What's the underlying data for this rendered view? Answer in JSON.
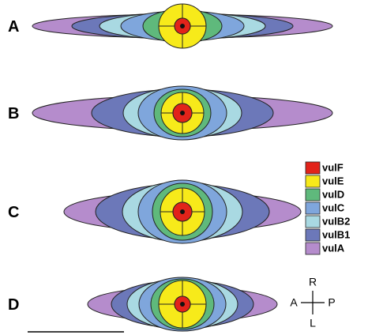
{
  "panels": [
    {
      "label": "A"
    },
    {
      "label": "B"
    },
    {
      "label": "C"
    },
    {
      "label": "D"
    }
  ],
  "legend": [
    {
      "label": "vulF",
      "color": "#e2231a"
    },
    {
      "label": "vulE",
      "color": "#f7ea1a"
    },
    {
      "label": "vulD",
      "color": "#5fb97c"
    },
    {
      "label": "vulC",
      "color": "#7fa6dc"
    },
    {
      "label": "vulB2",
      "color": "#a9d9e2"
    },
    {
      "label": "vulB1",
      "color": "#6c78b9"
    },
    {
      "label": "vulA",
      "color": "#b58ccc"
    }
  ],
  "compass": {
    "up": "R",
    "down": "L",
    "left": "A",
    "right": "P"
  }
}
